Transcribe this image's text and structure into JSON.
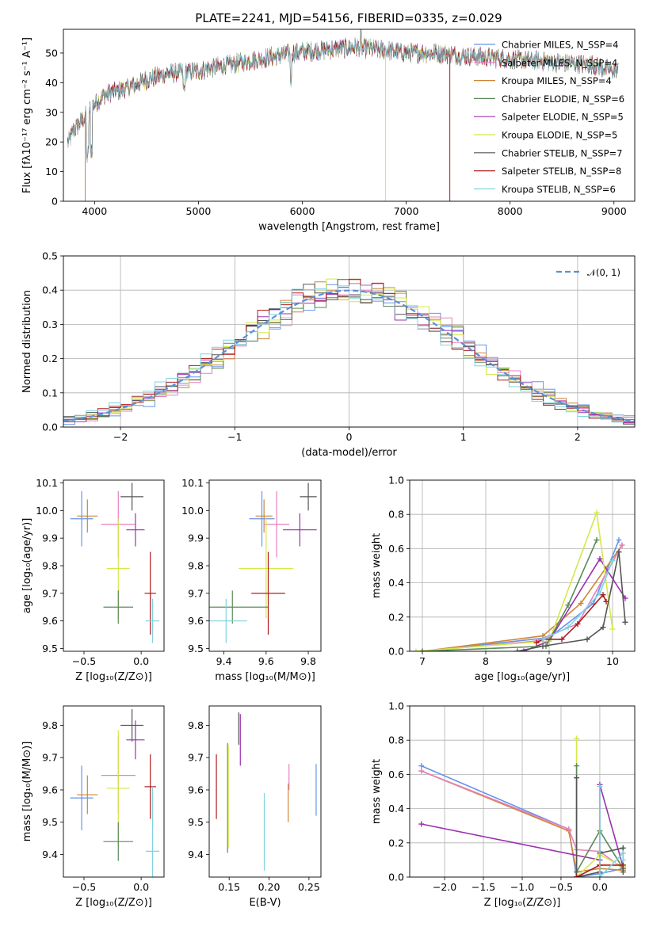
{
  "title": "PLATE=2241, MJD=54156, FIBERID=0335, z=0.029",
  "chart_data": [
    {
      "id": "spectrum",
      "type": "line",
      "xlabel": "wavelength [Angstrom, rest frame]",
      "ylabel": "Flux [fλ10⁻¹⁷ erg cm⁻² s⁻¹ A⁻¹]",
      "xlim": [
        3700,
        9200
      ],
      "ylim": [
        0,
        58
      ],
      "xticks": [
        "4000",
        "5000",
        "6000",
        "7000",
        "8000",
        "9000"
      ],
      "yticks": [
        "0",
        "10",
        "20",
        "30",
        "40",
        "50"
      ],
      "legend_position": "top-right",
      "series": [
        {
          "name": "Chabrier MILES, N_SSP=4",
          "color": "#6495ed"
        },
        {
          "name": "Salpeter MILES, N_SSP=4",
          "color": "#e87fbe"
        },
        {
          "name": "Kroupa MILES, N_SSP=4",
          "color": "#cd8636"
        },
        {
          "name": "Chabrier ELODIE, N_SSP=6",
          "color": "#5a8a5a"
        },
        {
          "name": "Salpeter ELODIE, N_SSP=5",
          "color": "#9b30b0"
        },
        {
          "name": "Kroupa ELODIE, N_SSP=5",
          "color": "#d4e84a"
        },
        {
          "name": "Chabrier STELIB, N_SSP=7",
          "color": "#555555"
        },
        {
          "name": "Salpeter STELIB, N_SSP=8",
          "color": "#b01c1c"
        },
        {
          "name": "Kroupa STELIB, N_SSP=6",
          "color": "#7fd3df"
        }
      ],
      "continuum": {
        "x": [
          3750,
          3800,
          3900,
          4000,
          4100,
          4300,
          4500,
          4700,
          5000,
          5300,
          5600,
          5900,
          6200,
          6500,
          6800,
          7000,
          7300,
          7600,
          8000,
          8400,
          8800,
          9000
        ],
        "y": [
          20,
          24,
          28,
          33,
          36,
          38,
          41,
          43,
          44,
          46,
          48,
          50,
          51,
          52,
          51,
          50,
          50,
          49,
          48,
          47,
          46,
          44
        ]
      }
    },
    {
      "id": "residuals",
      "type": "step",
      "xlabel": "(data-model)/error",
      "ylabel": "Normed distribution",
      "xlim": [
        -2.5,
        2.5
      ],
      "ylim": [
        0,
        0.5
      ],
      "xticks": [
        "−2",
        "−1",
        "0",
        "1",
        "2"
      ],
      "yticks": [
        "0.0",
        "0.1",
        "0.2",
        "0.3",
        "0.4",
        "0.5"
      ],
      "legend": "𝒩(0, 1)",
      "legend_position": "top-right",
      "bin_width": 0.1,
      "bins_start": -2.5
    },
    {
      "id": "age_vs_Z",
      "type": "errorbar",
      "xlabel": "Z [log₁₀(Z/Z⊙)]",
      "ylabel": "age  [log₁₀(age/yr)]",
      "xlim": [
        -0.68,
        0.2
      ],
      "ylim": [
        9.49,
        10.11
      ],
      "xticks": [
        "−0.5",
        "0.0"
      ],
      "yticks": [
        "9.5",
        "9.6",
        "9.7",
        "9.8",
        "9.9",
        "10.0",
        "10.1"
      ],
      "points": [
        {
          "x": -0.52,
          "y": 9.97,
          "xerr": 0.1,
          "yerr": 0.1,
          "color": "#6495ed"
        },
        {
          "x": -0.47,
          "y": 9.98,
          "xerr": 0.09,
          "yerr": 0.06,
          "color": "#cd8636"
        },
        {
          "x": -0.2,
          "y": 9.95,
          "xerr": 0.15,
          "yerr": 0.12,
          "color": "#e87fbe"
        },
        {
          "x": -0.05,
          "y": 9.93,
          "xerr": 0.08,
          "yerr": 0.06,
          "color": "#9b30b0"
        },
        {
          "x": -0.2,
          "y": 9.79,
          "xerr": 0.1,
          "yerr": 0.18,
          "color": "#d4e84a"
        },
        {
          "x": -0.2,
          "y": 9.65,
          "xerr": 0.13,
          "yerr": 0.06,
          "color": "#5a8a5a"
        },
        {
          "x": 0.08,
          "y": 9.7,
          "xerr": 0.05,
          "yerr": 0.15,
          "color": "#b01c1c"
        },
        {
          "x": 0.1,
          "y": 9.6,
          "xerr": 0.06,
          "yerr": 0.08,
          "color": "#7fd3df"
        },
        {
          "x": -0.08,
          "y": 10.05,
          "xerr": 0.1,
          "yerr": 0.05,
          "color": "#555555"
        }
      ]
    },
    {
      "id": "age_vs_mass",
      "type": "errorbar",
      "xlabel": "mass [log₁₀(M/M⊙)]",
      "ylabel": "",
      "xlim": [
        9.33,
        9.86
      ],
      "ylim": [
        9.49,
        10.11
      ],
      "xticks": [
        "9.4",
        "9.6",
        "9.8"
      ],
      "yticks": [
        "9.5",
        "9.6",
        "9.7",
        "9.8",
        "9.9",
        "10.0",
        "10.1"
      ],
      "points": [
        {
          "x": 9.58,
          "y": 9.97,
          "xerr": 0.06,
          "yerr": 0.1,
          "color": "#6495ed"
        },
        {
          "x": 9.59,
          "y": 9.98,
          "xerr": 0.04,
          "yerr": 0.06,
          "color": "#cd8636"
        },
        {
          "x": 9.65,
          "y": 9.95,
          "xerr": 0.06,
          "yerr": 0.12,
          "color": "#e87fbe"
        },
        {
          "x": 9.76,
          "y": 9.93,
          "xerr": 0.08,
          "yerr": 0.06,
          "color": "#9b30b0"
        },
        {
          "x": 9.6,
          "y": 9.79,
          "xerr": 0.13,
          "yerr": 0.18,
          "color": "#d4e84a"
        },
        {
          "x": 9.44,
          "y": 9.65,
          "xerr": 0.17,
          "yerr": 0.06,
          "color": "#5a8a5a"
        },
        {
          "x": 9.61,
          "y": 9.7,
          "xerr": 0.08,
          "yerr": 0.15,
          "color": "#b01c1c"
        },
        {
          "x": 9.41,
          "y": 9.6,
          "xerr": 0.1,
          "yerr": 0.08,
          "color": "#7fd3df"
        },
        {
          "x": 9.8,
          "y": 10.05,
          "xerr": 0.04,
          "yerr": 0.05,
          "color": "#555555"
        }
      ]
    },
    {
      "id": "massweight_vs_age",
      "type": "line",
      "xlabel": "age  [log₁₀(age/yr)]",
      "ylabel": "mass weight",
      "xlim": [
        6.8,
        10.35
      ],
      "ylim": [
        0,
        1
      ],
      "xticks": [
        "7",
        "8",
        "9",
        "10"
      ],
      "yticks": [
        "0.0",
        "0.2",
        "0.4",
        "0.6",
        "0.8",
        "1.0"
      ],
      "series": [
        {
          "color": "#6495ed",
          "x": [
            7.0,
            9.0,
            9.7,
            10.1
          ],
          "y": [
            0.0,
            0.08,
            0.28,
            0.65
          ]
        },
        {
          "color": "#cd8636",
          "x": [
            7.0,
            8.9,
            9.5,
            10.15
          ],
          "y": [
            0.0,
            0.09,
            0.28,
            0.62
          ]
        },
        {
          "color": "#e87fbe",
          "x": [
            7.0,
            8.8,
            9.45,
            10.15
          ],
          "y": [
            0.0,
            0.06,
            0.16,
            0.62
          ]
        },
        {
          "color": "#9b30b0",
          "x": [
            8.6,
            9.0,
            9.8,
            10.2
          ],
          "y": [
            0.0,
            0.06,
            0.54,
            0.31
          ]
        },
        {
          "color": "#d4e84a",
          "x": [
            6.9,
            9.0,
            9.75,
            10.0
          ],
          "y": [
            0.0,
            0.06,
            0.81,
            0.13
          ]
        },
        {
          "color": "#5a8a5a",
          "x": [
            7.0,
            8.95,
            9.3,
            9.75
          ],
          "y": [
            0.0,
            0.03,
            0.27,
            0.65
          ]
        },
        {
          "color": "#555555",
          "x": [
            8.5,
            8.9,
            9.6,
            9.85,
            10.1,
            10.2
          ],
          "y": [
            0.0,
            0.03,
            0.07,
            0.14,
            0.58,
            0.17
          ]
        },
        {
          "color": "#b01c1c",
          "x": [
            8.8,
            8.9,
            9.2,
            9.45,
            9.85,
            9.9
          ],
          "y": [
            0.05,
            0.07,
            0.07,
            0.16,
            0.33,
            0.29
          ]
        },
        {
          "color": "#7fd3df",
          "x": [
            8.9,
            9.3,
            9.8,
            10.0
          ],
          "y": [
            0.07,
            0.14,
            0.34,
            0.53
          ]
        }
      ]
    },
    {
      "id": "mass_vs_Z",
      "type": "errorbar",
      "xlabel": "Z [log₁₀(Z/Z⊙)]",
      "ylabel": "mass [log₁₀(M/M⊙)]",
      "xlim": [
        -0.68,
        0.2
      ],
      "ylim": [
        9.33,
        9.86
      ],
      "xticks": [
        "−0.5",
        "0.0"
      ],
      "yticks": [
        "9.4",
        "9.5",
        "9.6",
        "9.7",
        "9.8"
      ],
      "points": [
        {
          "x": -0.52,
          "y": 9.575,
          "xerr": 0.1,
          "yerr": 0.1,
          "color": "#6495ed"
        },
        {
          "x": -0.47,
          "y": 9.585,
          "xerr": 0.09,
          "yerr": 0.06,
          "color": "#cd8636"
        },
        {
          "x": -0.2,
          "y": 9.645,
          "xerr": 0.15,
          "yerr": 0.12,
          "color": "#e87fbe"
        },
        {
          "x": -0.05,
          "y": 9.755,
          "xerr": 0.08,
          "yerr": 0.06,
          "color": "#9b30b0"
        },
        {
          "x": -0.2,
          "y": 9.605,
          "xerr": 0.1,
          "yerr": 0.18,
          "color": "#d4e84a"
        },
        {
          "x": -0.2,
          "y": 9.44,
          "xerr": 0.13,
          "yerr": 0.06,
          "color": "#5a8a5a"
        },
        {
          "x": 0.08,
          "y": 9.61,
          "xerr": 0.05,
          "yerr": 0.1,
          "color": "#b01c1c"
        },
        {
          "x": 0.1,
          "y": 9.41,
          "xerr": 0.06,
          "yerr": 0.2,
          "color": "#7fd3df"
        },
        {
          "x": -0.08,
          "y": 9.8,
          "xerr": 0.1,
          "yerr": 0.05,
          "color": "#555555"
        }
      ]
    },
    {
      "id": "mass_vs_ebv",
      "type": "errorbar",
      "xlabel": "E(B-V)",
      "ylabel": "",
      "xlim": [
        0.125,
        0.265
      ],
      "ylim": [
        9.33,
        9.86
      ],
      "xticks": [
        "0.15",
        "0.20",
        "0.25"
      ],
      "yticks": [
        "9.4",
        "9.5",
        "9.6",
        "9.7",
        "9.8"
      ],
      "points": [
        {
          "x": 0.134,
          "y": 9.61,
          "xerr": 0,
          "yerr": 0.1,
          "color": "#b01c1c"
        },
        {
          "x": 0.148,
          "y": 9.575,
          "xerr": 0,
          "yerr": 0.17,
          "color": "#5a8a5a"
        },
        {
          "x": 0.149,
          "y": 9.58,
          "xerr": 0,
          "yerr": 0.16,
          "color": "#d4e84a"
        },
        {
          "x": 0.162,
          "y": 9.79,
          "xerr": 0,
          "yerr": 0.05,
          "color": "#555555"
        },
        {
          "x": 0.164,
          "y": 9.755,
          "xerr": 0,
          "yerr": 0.08,
          "color": "#9b30b0"
        },
        {
          "x": 0.194,
          "y": 9.47,
          "xerr": 0,
          "yerr": 0.12,
          "color": "#7fd3df"
        },
        {
          "x": 0.224,
          "y": 9.56,
          "xerr": 0,
          "yerr": 0.06,
          "color": "#cd8636"
        },
        {
          "x": 0.225,
          "y": 9.64,
          "xerr": 0,
          "yerr": 0.04,
          "color": "#e87fbe"
        },
        {
          "x": 0.259,
          "y": 9.6,
          "xerr": 0,
          "yerr": 0.08,
          "color": "#6495ed"
        }
      ]
    },
    {
      "id": "massweight_vs_Z",
      "type": "line",
      "xlabel": "Z [log₁₀(Z/Z⊙)]",
      "ylabel": "mass weight",
      "xlim": [
        -2.45,
        0.45
      ],
      "ylim": [
        0,
        1
      ],
      "xticks": [
        "−2.0",
        "−1.5",
        "−1.0",
        "−0.5",
        "0.0"
      ],
      "yticks": [
        "0.0",
        "0.2",
        "0.4",
        "0.6",
        "0.8",
        "1.0"
      ],
      "series": [
        {
          "color": "#6495ed",
          "x": [
            -2.3,
            -0.4,
            -0.3,
            0.0,
            0.3
          ],
          "y": [
            0.65,
            0.28,
            0.0,
            0.02,
            0.05
          ]
        },
        {
          "color": "#cd8636",
          "x": [
            -2.3,
            -0.4,
            -0.3,
            0.0,
            0.3
          ],
          "y": [
            0.62,
            0.27,
            0.03,
            0.05,
            0.04
          ]
        },
        {
          "color": "#e87fbe",
          "x": [
            -2.3,
            -0.4,
            -0.3,
            0.0,
            0.3
          ],
          "y": [
            0.62,
            0.28,
            0.16,
            0.15,
            0.05
          ]
        },
        {
          "color": "#9b30b0",
          "x": [
            -2.3,
            0.0,
            0.0,
            0.3
          ],
          "y": [
            0.31,
            0.1,
            0.54,
            0.06
          ]
        },
        {
          "color": "#d4e84a",
          "x": [
            -0.3,
            -0.3,
            0.0,
            0.3
          ],
          "y": [
            0.81,
            0.0,
            0.13,
            0.06
          ]
        },
        {
          "color": "#5a8a5a",
          "x": [
            -0.3,
            -0.3,
            0.0,
            0.3
          ],
          "y": [
            0.65,
            0.03,
            0.27,
            0.05
          ]
        },
        {
          "color": "#555555",
          "x": [
            -0.3,
            -0.3,
            0.0,
            0.0,
            0.3,
            0.3
          ],
          "y": [
            0.58,
            0.0,
            0.03,
            0.14,
            0.17,
            0.03
          ]
        },
        {
          "color": "#b01c1c",
          "x": [
            -0.3,
            0.0,
            0.0,
            0.3
          ],
          "y": [
            0.0,
            0.07,
            0.07,
            0.07
          ]
        },
        {
          "color": "#7fd3df",
          "x": [
            0.0,
            0.0,
            0.3,
            0.3
          ],
          "y": [
            0.53,
            0.0,
            0.14,
            0.1
          ]
        }
      ]
    }
  ]
}
